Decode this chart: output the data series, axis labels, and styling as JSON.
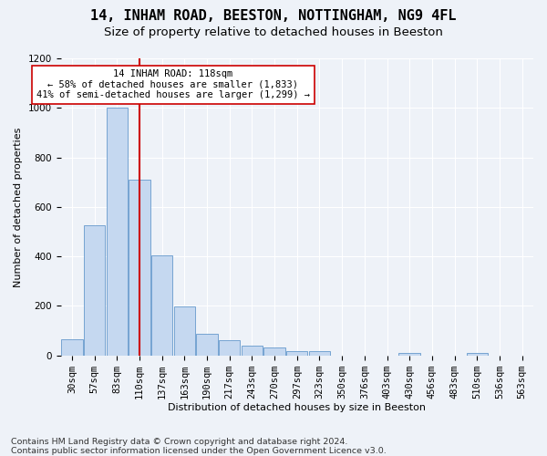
{
  "title1": "14, INHAM ROAD, BEESTON, NOTTINGHAM, NG9 4FL",
  "title2": "Size of property relative to detached houses in Beeston",
  "xlabel": "Distribution of detached houses by size in Beeston",
  "ylabel": "Number of detached properties",
  "categories": [
    "30sqm",
    "57sqm",
    "83sqm",
    "110sqm",
    "137sqm",
    "163sqm",
    "190sqm",
    "217sqm",
    "243sqm",
    "270sqm",
    "297sqm",
    "323sqm",
    "350sqm",
    "376sqm",
    "403sqm",
    "430sqm",
    "456sqm",
    "483sqm",
    "510sqm",
    "536sqm",
    "563sqm"
  ],
  "values": [
    65,
    525,
    1000,
    710,
    405,
    197,
    88,
    60,
    40,
    33,
    18,
    18,
    0,
    0,
    0,
    10,
    0,
    0,
    10,
    0,
    0
  ],
  "bar_color": "#c5d8f0",
  "bar_edge_color": "#6699cc",
  "vline_color": "#cc0000",
  "vline_x_index": 3.0,
  "annotation_line1": "14 INHAM ROAD: 118sqm",
  "annotation_line2": "← 58% of detached houses are smaller (1,833)",
  "annotation_line3": "41% of semi-detached houses are larger (1,299) →",
  "annotation_box_color": "#ffffff",
  "annotation_box_edge": "#cc0000",
  "ylim": [
    0,
    1200
  ],
  "yticks": [
    0,
    200,
    400,
    600,
    800,
    1000,
    1200
  ],
  "footer_text": "Contains HM Land Registry data © Crown copyright and database right 2024.\nContains public sector information licensed under the Open Government Licence v3.0.",
  "bg_color": "#eef2f8",
  "grid_color": "#ffffff",
  "title1_fontsize": 11,
  "title2_fontsize": 9.5,
  "axis_label_fontsize": 8,
  "tick_fontsize": 7.5,
  "annot_fontsize": 7.5,
  "footer_fontsize": 6.8
}
